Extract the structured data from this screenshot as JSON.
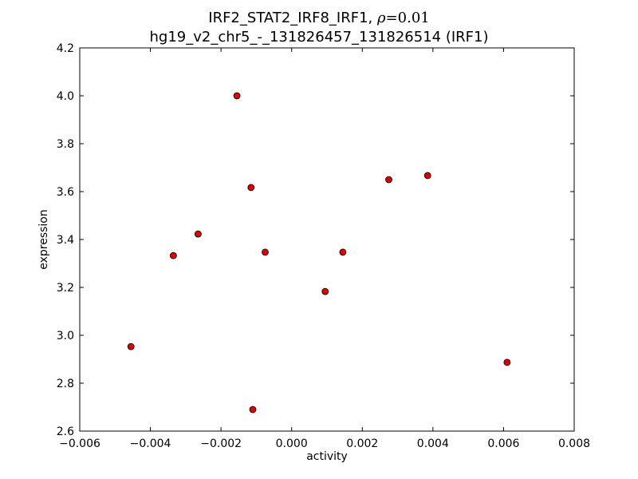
{
  "chart_data": {
    "type": "scatter",
    "title_prefix": "IRF2_STAT2_IRF8_IRF1, ",
    "title_rho_symbol": "ρ",
    "title_rho_eq": "=0.01",
    "subtitle": "hg19_v2_chr5_-_131826457_131826514 (IRF1)",
    "xlabel": "activity",
    "ylabel": "expression",
    "xlim": [
      -0.006,
      0.008
    ],
    "ylim": [
      2.6,
      4.2
    ],
    "xticks": [
      -0.006,
      -0.004,
      -0.002,
      0.0,
      0.002,
      0.004,
      0.006,
      0.008
    ],
    "xtick_labels": [
      "−0.006",
      "−0.004",
      "−0.002",
      "0.000",
      "0.002",
      "0.004",
      "0.006",
      "0.008"
    ],
    "yticks": [
      2.6,
      2.8,
      3.0,
      3.2,
      3.4,
      3.6,
      3.8,
      4.0,
      4.2
    ],
    "ytick_labels": [
      "2.6",
      "2.8",
      "3.0",
      "3.2",
      "3.4",
      "3.6",
      "3.8",
      "4.0",
      "4.2"
    ],
    "grid": false,
    "marker_color": "#dd0000",
    "points": [
      {
        "x": -0.00455,
        "y": 2.953
      },
      {
        "x": -0.00335,
        "y": 3.333
      },
      {
        "x": -0.00265,
        "y": 3.423
      },
      {
        "x": -0.00155,
        "y": 4.0
      },
      {
        "x": -0.00115,
        "y": 3.617
      },
      {
        "x": -0.0011,
        "y": 2.69
      },
      {
        "x": -0.00075,
        "y": 3.347
      },
      {
        "x": 0.00095,
        "y": 3.183
      },
      {
        "x": 0.00145,
        "y": 3.347
      },
      {
        "x": 0.00275,
        "y": 3.65
      },
      {
        "x": 0.00385,
        "y": 3.667
      },
      {
        "x": 0.0061,
        "y": 2.887
      }
    ]
  }
}
